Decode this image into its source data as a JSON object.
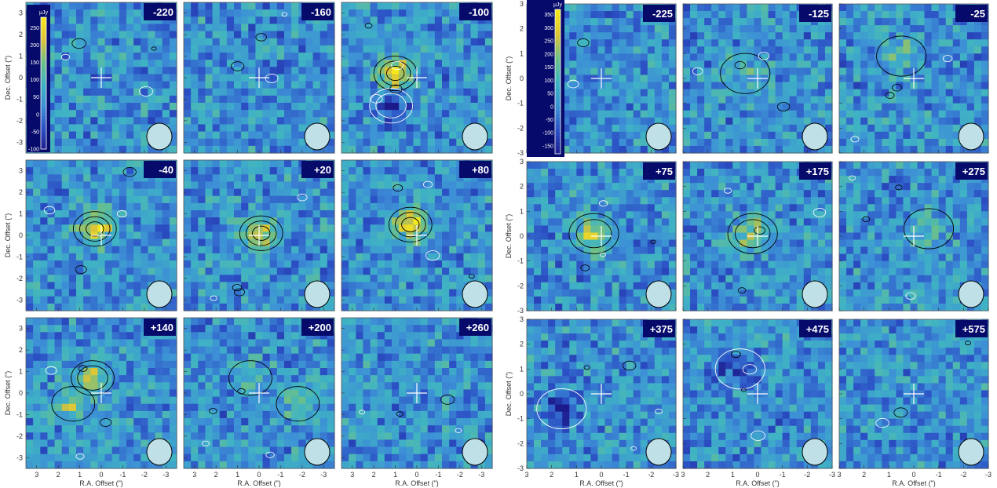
{
  "chart_data": [
    {
      "type": "heatmap",
      "title": "",
      "xlabel": "R.A. Offset (\")",
      "ylabel": "Dec. Offset (\")",
      "xlim": [
        3.5,
        -3.5
      ],
      "ylim": [
        -3.5,
        3.5
      ],
      "x_ticks": [
        "3",
        "2",
        "1",
        "0",
        "-1",
        "-2",
        "-3"
      ],
      "y_ticks": [
        "3",
        "2",
        "1",
        "0",
        "-1",
        "-2",
        "-3"
      ],
      "colorbar": {
        "unit": "μJy",
        "ticks": [
          "250",
          "200",
          "150",
          "100",
          "50",
          "0",
          "-50",
          "-100"
        ],
        "range": [
          -100,
          280
        ]
      },
      "colormap": [
        "#1c1a8a",
        "#2b4fc4",
        "#3d8fd6",
        "#3fb3c4",
        "#6cc08a",
        "#d9c23a",
        "#f7e81c"
      ],
      "panels": [
        {
          "label": "-220",
          "peaks": []
        },
        {
          "label": "-160",
          "peaks": []
        },
        {
          "label": "-100",
          "peaks": [
            {
              "x": 1.0,
              "y": 0.2,
              "strength": 1.0
            },
            {
              "x": 1.2,
              "y": -1.3,
              "strength": -0.6
            }
          ]
        },
        {
          "label": "-40",
          "peaks": [
            {
              "x": 0.3,
              "y": 0.3,
              "strength": 0.9
            }
          ]
        },
        {
          "label": "+20",
          "peaks": [
            {
              "x": -0.1,
              "y": 0.1,
              "strength": 0.85
            }
          ]
        },
        {
          "label": "+80",
          "peaks": [
            {
              "x": 0.3,
              "y": 0.5,
              "strength": 1.0
            }
          ]
        },
        {
          "label": "+140",
          "peaks": [
            {
              "x": 0.4,
              "y": 0.7,
              "strength": 0.55
            },
            {
              "x": 1.3,
              "y": -0.5,
              "strength": 0.45
            }
          ]
        },
        {
          "label": "+200",
          "peaks": [
            {
              "x": 0.4,
              "y": 0.7,
              "strength": 0.4
            },
            {
              "x": -1.8,
              "y": -0.5,
              "strength": 0.4
            }
          ]
        },
        {
          "label": "+260",
          "peaks": []
        }
      ]
    },
    {
      "type": "heatmap",
      "title": "",
      "xlabel": "R.A. Offset (\")",
      "ylabel": "Dec. Offset (\")",
      "xlim": [
        3,
        -3
      ],
      "ylim": [
        -3,
        3
      ],
      "x_ticks": [
        "3",
        "2",
        "1",
        "0",
        "-1",
        "-2",
        "-3"
      ],
      "y_ticks": [
        "3",
        "2",
        "1",
        "0",
        "-1",
        "-2",
        "-3"
      ],
      "colorbar": {
        "unit": "μJy",
        "ticks": [
          "350",
          "300",
          "250",
          "200",
          "150",
          "100",
          "50",
          "0",
          "-50",
          "-100",
          "-150"
        ],
        "range": [
          -180,
          370
        ]
      },
      "colormap": [
        "#1c1a8a",
        "#2b4fc4",
        "#3d8fd6",
        "#3fb3c4",
        "#6cc08a",
        "#d9c23a",
        "#f7e81c"
      ],
      "panels": [
        {
          "label": "-225",
          "peaks": []
        },
        {
          "label": "-125",
          "peaks": [
            {
              "x": 0.5,
              "y": 0.2,
              "strength": 0.3
            }
          ]
        },
        {
          "label": "-25",
          "peaks": [
            {
              "x": 0.5,
              "y": 0.9,
              "strength": 0.4
            }
          ]
        },
        {
          "label": "+75",
          "peaks": [
            {
              "x": 0.3,
              "y": 0.1,
              "strength": 0.7
            }
          ]
        },
        {
          "label": "+175",
          "peaks": [
            {
              "x": 0.2,
              "y": 0.1,
              "strength": 0.55
            }
          ]
        },
        {
          "label": "+275",
          "peaks": [
            {
              "x": -0.6,
              "y": 0.3,
              "strength": 0.3
            }
          ]
        },
        {
          "label": "+375",
          "peaks": [
            {
              "x": 1.6,
              "y": -0.6,
              "strength": -0.4
            }
          ]
        },
        {
          "label": "+475",
          "peaks": [
            {
              "x": 0.7,
              "y": 1.0,
              "strength": -0.3
            }
          ]
        },
        {
          "label": "+575",
          "peaks": []
        }
      ]
    }
  ]
}
